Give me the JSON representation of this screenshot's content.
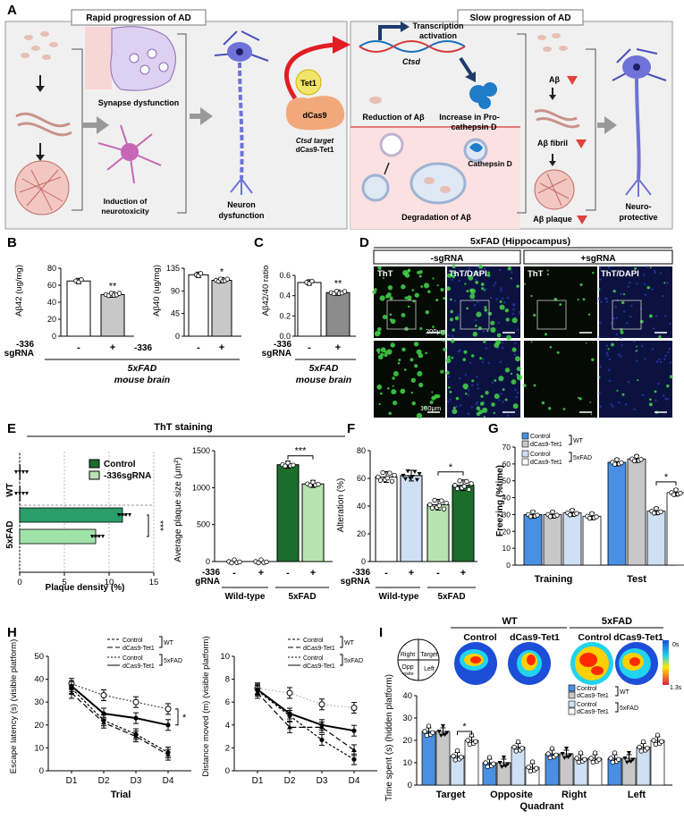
{
  "panelA": {
    "letter": "A",
    "left_title": "Rapid progression of AD",
    "right_title": "Slow progression of AD",
    "synapse": "Synapse dysfunction",
    "neurotox1": "Induction of",
    "neurotox2": "neurotoxicity",
    "neuron1": "Neuron",
    "neuron2": "dysfunction",
    "transcription1": "Transcription",
    "transcription2": "activation",
    "ctsd": "Ctsd",
    "tet1": "Tet1",
    "dcas9": "dCas9",
    "ctsd_target": "Ctsd target",
    "dcas9_tet1": "dCas9-Tet1",
    "reduction": "Reduction of Aβ",
    "increase1": "Increase in Pro-",
    "increase2": "cathepsin D",
    "cathepsin": "Cathepsin D",
    "degradation": "Degradation of Aβ",
    "abeta": "Aβ",
    "fibril": "Aβ fibril",
    "plaque": "Aβ plaque",
    "neuroprot1": "Neuro-",
    "neuroprot2": "protective"
  },
  "panelB": {
    "letter": "B",
    "row1": "-336",
    "row2": "sgRNA",
    "xticks": [
      "-",
      "+"
    ],
    "caption1": "5xFAD",
    "caption2": "mouse brain",
    "left_ticks": [
      "0",
      "20",
      "40",
      "60",
      "80"
    ],
    "right_ticks": [
      "0",
      "45",
      "90",
      "135"
    ],
    "sig_left": "**",
    "sig_right": "*"
  },
  "panelC": {
    "letter": "C",
    "row1": "-336",
    "row2": "sgRNA",
    "xticks": [
      "-",
      "+"
    ],
    "caption1": "5xFAD",
    "caption2": "mouse brain",
    "yticks": [
      "0.0",
      "0.2",
      "0.4",
      "0.6"
    ],
    "sig": "**"
  },
  "panelD": {
    "letter": "D",
    "title": "5xFAD (Hippocampus)",
    "minus": "-sgRNA",
    "plus": "+sgRNA",
    "tht": "ThT",
    "thtdapi": "ThT/DAPI",
    "scale1": "200μm",
    "scale2": "100μm"
  },
  "panelE": {
    "letter": "E",
    "title": "ThT staining",
    "legend_control": "Control",
    "legend_sg": "-336sgRNA",
    "wt": "WT",
    "fad": "5xFAD",
    "xticks": [
      "0",
      "5",
      "10",
      "15"
    ],
    "xlabel": "Plaque density (%)",
    "sig_density": "***",
    "right_yticks": [
      "0",
      "500",
      "1000",
      "1500"
    ],
    "row1": "-336",
    "row2": "gRNA",
    "xtick_signs": [
      "-",
      "+",
      "-",
      "+"
    ],
    "grp_wt": "Wild-type",
    "grp_fad": "5xFAD",
    "sig_size": "***"
  },
  "panelF": {
    "letter": "F",
    "yticks": [
      "0",
      "20",
      "40",
      "60",
      "80"
    ],
    "row1": "-336",
    "row2": "sgRNA",
    "xtick_signs": [
      "-",
      "+",
      "-",
      "+"
    ],
    "grp_wt": "Wild-type",
    "grp_fad": "5xFAD",
    "sig": "*"
  },
  "panelG": {
    "letter": "G",
    "yticks": [
      "0",
      "10",
      "20",
      "30",
      "40",
      "50",
      "60",
      "70"
    ],
    "legend": [
      "Control",
      "dCas9-Tet1",
      "Control",
      "dCas9-Tet1"
    ],
    "wt": "WT",
    "fad": "5xFAD",
    "training": "Training",
    "test": "Test",
    "sig": "*"
  },
  "panelH": {
    "letter": "H",
    "legend": [
      "Control",
      "dCas9-Tet1",
      "Control",
      "dCas9-Tet1"
    ],
    "wt": "WT",
    "fad": "5xFAD",
    "left_yticks": [
      "0",
      "10",
      "20",
      "30",
      "40",
      "50"
    ],
    "right_yticks": [
      "0",
      "2",
      "4",
      "6",
      "8",
      "10"
    ],
    "xticks": [
      "D1",
      "D2",
      "D3",
      "D4"
    ],
    "sig": "*"
  },
  "panelI": {
    "letter": "I",
    "wt": "WT",
    "fad": "5xFAD",
    "control": "Control",
    "dcas": "dCas9-Tet1",
    "scale_top": "0s",
    "scale_bot": "1.3s",
    "q_right": "Right",
    "q_target": "Target",
    "q_opp1": "Opp",
    "q_opp2": "-osite",
    "q_left": "Left",
    "legend": [
      "Control",
      "dCas9-Tet1",
      "Control",
      "dCas9-Tet1"
    ],
    "yticks": [
      "0",
      "10",
      "20",
      "30",
      "40"
    ],
    "xcats": [
      "Target",
      "Opposite",
      "Right",
      "Left"
    ],
    "sig": "*"
  },
  "labels": {
    "B_left_y": "Aβ42 (ug/mg)",
    "B_right_y": "Aβ40 (ug/mg)",
    "C_y": "Aβ42/40 ratio",
    "E_right_y": "Average plaque size (μm²)",
    "F_y": "Alteration (%)",
    "G_y": "Freezing (%time)",
    "H_left_y": "Escape latency (s) (visible platform)",
    "H_right_y": "Distance moved (m) (visible platform)",
    "H_x": "Trial",
    "I_y": "Time spent (s) (hidden platform)",
    "I_x": "Quadrant"
  },
  "colors": {
    "blue": "#4a90e2",
    "gray": "#c8c8c8",
    "lightblue": "#cfe0f5",
    "white": "#ffffff",
    "dgreen": "#1b6e2a",
    "lgreen": "#b7e3b0",
    "tealgreen": "#2a9d6a",
    "lightgreen2": "#9fe3a8",
    "panel_bg": "#f2f2f2"
  },
  "chart_data": [
    {
      "panel": "B-left",
      "type": "bar",
      "categories": [
        "-",
        "+"
      ],
      "values": [
        65,
        49
      ],
      "ylim": [
        0,
        80
      ],
      "ylabel": "Aβ42 (ug/mg)",
      "xlabel": "5xFAD mouse brain"
    },
    {
      "panel": "B-right",
      "type": "bar",
      "categories": [
        "-",
        "+"
      ],
      "values": [
        122,
        111
      ],
      "ylim": [
        0,
        135
      ],
      "ylabel": "Aβ40 (ug/mg)",
      "xlabel": "5xFAD mouse brain"
    },
    {
      "panel": "C",
      "type": "bar",
      "categories": [
        "-",
        "+"
      ],
      "values": [
        0.53,
        0.43
      ],
      "ylim": [
        0,
        0.6
      ],
      "ylabel": "Aβ42/40 ratio",
      "xlabel": "5xFAD mouse brain"
    },
    {
      "panel": "E-left",
      "type": "bar",
      "categories": [
        "WT",
        "5xFAD"
      ],
      "series": [
        {
          "name": "Control",
          "values": [
            0,
            11.5
          ]
        },
        {
          "name": "-336sgRNA",
          "values": [
            0,
            8.5
          ]
        }
      ],
      "xlim": [
        0,
        15
      ],
      "xlabel": "Plaque density (%)",
      "orientation": "horizontal"
    },
    {
      "panel": "E-right",
      "type": "bar",
      "categories": [
        "Wild-type -",
        "Wild-type +",
        "5xFAD -",
        "5xFAD +"
      ],
      "values": [
        0,
        0,
        1310,
        1050
      ],
      "ylim": [
        0,
        1500
      ],
      "ylabel": "Average plaque size (μm²)"
    },
    {
      "panel": "F",
      "type": "bar",
      "categories": [
        "Wild-type -",
        "Wild-type +",
        "5xFAD -",
        "5xFAD +"
      ],
      "values": [
        61,
        62,
        41,
        55
      ],
      "ylim": [
        0,
        80
      ],
      "ylabel": "Alteration (%)"
    },
    {
      "panel": "G",
      "type": "bar",
      "categories": [
        "Training",
        "Test"
      ],
      "series": [
        {
          "name": "Control WT",
          "values": [
            30,
            61
          ]
        },
        {
          "name": "dCas9-Tet1 WT",
          "values": [
            30,
            63
          ]
        },
        {
          "name": "Control 5xFAD",
          "values": [
            31,
            32
          ]
        },
        {
          "name": "dCas9-Tet1 5xFAD",
          "values": [
            29,
            43
          ]
        }
      ],
      "ylim": [
        0,
        70
      ],
      "ylabel": "Freezing (%time)"
    },
    {
      "panel": "H-left",
      "type": "line",
      "x": [
        "D1",
        "D2",
        "D3",
        "D4"
      ],
      "series": [
        {
          "name": "Control WT",
          "values": [
            36,
            22,
            16,
            8
          ]
        },
        {
          "name": "dCas9-Tet1 WT",
          "values": [
            34,
            21,
            15,
            7
          ]
        },
        {
          "name": "Control 5xFAD",
          "values": [
            38,
            33,
            30,
            27
          ]
        },
        {
          "name": "dCas9-Tet1 5xFAD",
          "values": [
            37,
            25,
            23,
            20
          ]
        }
      ],
      "ylim": [
        0,
        50
      ],
      "ylabel": "Escape latency (s) (visible platform)",
      "xlabel": "Trial"
    },
    {
      "panel": "H-right",
      "type": "line",
      "x": [
        "D1",
        "D2",
        "D3",
        "D4"
      ],
      "series": [
        {
          "name": "Control WT",
          "values": [
            7.0,
            4.8,
            2.7,
            1.0
          ]
        },
        {
          "name": "dCas9-Tet1 WT",
          "values": [
            6.8,
            3.8,
            3.8,
            1.8
          ]
        },
        {
          "name": "Control 5xFAD",
          "values": [
            7.2,
            6.8,
            5.8,
            5.5
          ]
        },
        {
          "name": "dCas9-Tet1 5xFAD",
          "values": [
            7.1,
            5.0,
            4.0,
            3.5
          ]
        }
      ],
      "ylim": [
        0,
        10
      ],
      "ylabel": "Distance moved (m) (visible platform)",
      "xlabel": "Trial"
    },
    {
      "panel": "I",
      "type": "bar",
      "categories": [
        "Target",
        "Opposite",
        "Right",
        "Left"
      ],
      "series": [
        {
          "name": "Control WT",
          "values": [
            24,
            10,
            14,
            12
          ]
        },
        {
          "name": "dCas9-Tet1 WT",
          "values": [
            24,
            10,
            14,
            12
          ]
        },
        {
          "name": "Control 5xFAD",
          "values": [
            13,
            17,
            12,
            17
          ]
        },
        {
          "name": "dCas9-Tet1 5xFAD",
          "values": [
            20,
            8,
            12,
            20
          ]
        }
      ],
      "ylim": [
        0,
        40
      ],
      "ylabel": "Time spent (s) (hidden platform)",
      "xlabel": "Quadrant"
    }
  ]
}
